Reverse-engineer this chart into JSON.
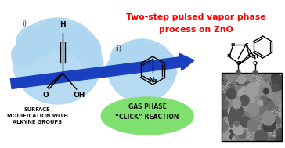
{
  "title_line1": "Two-step pulsed vapor phase",
  "title_line2": "process on ZnO",
  "title_color": "#FF0000",
  "title_fontsize": 7.8,
  "label_surface": "SURFACE\nMODIFICATION WITH\nALKYNE GROUPS",
  "label_gas": "GAS PHASE\n“CLICK” REACTION",
  "label_surface_color": "#111111",
  "label_gas_color": "#111111",
  "cloud1_color": "#AED6F1",
  "cloud2_color": "#AED6F1",
  "ellipse_color": "#7FE070",
  "arrow_color": "#1A3FBF",
  "background_color": "#FFFFFF",
  "label_i": "i)",
  "label_ii": "ii)",
  "sem_seed": 42
}
